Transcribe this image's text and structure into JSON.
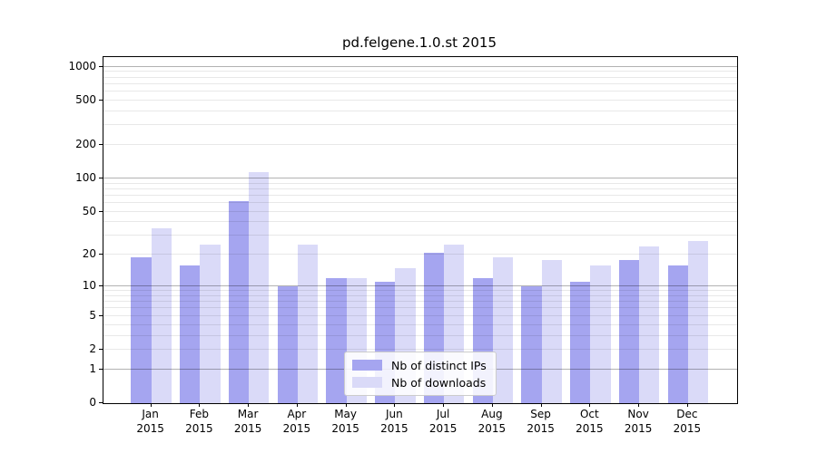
{
  "title": "pd.felgene.1.0.st 2015",
  "chart_data": {
    "type": "bar",
    "title": "pd.felgene.1.0.st 2015",
    "scale": "log10(1+value)",
    "grid": "horizontal, minor + major (majors at powers of 10), drawn over bars",
    "legend_position": "inside bottom-center",
    "categories": [
      "Jan",
      "Feb",
      "Mar",
      "Apr",
      "May",
      "Jun",
      "Jul",
      "Aug",
      "Sep",
      "Oct",
      "Nov",
      "Dec"
    ],
    "category_year": "2015",
    "series": [
      {
        "name": "Nb of distinct IPs",
        "color": "#a5a5f0",
        "values": [
          19,
          16,
          62,
          10,
          12,
          11,
          21,
          12,
          10,
          11,
          18,
          16
        ]
      },
      {
        "name": "Nb of downloads",
        "color": "#dadaf8",
        "values": [
          35,
          25,
          114,
          25,
          12,
          15,
          25,
          19,
          18,
          16,
          24,
          27
        ]
      }
    ],
    "xlabel": "",
    "ylabel": "",
    "y_ticks": [
      0,
      1,
      2,
      5,
      10,
      20,
      50,
      100,
      200,
      500,
      1000
    ],
    "y_minor_gridlines": [
      2,
      3,
      4,
      5,
      6,
      7,
      8,
      9,
      20,
      30,
      40,
      50,
      60,
      70,
      80,
      90,
      200,
      300,
      400,
      500,
      600,
      700,
      800,
      900
    ],
    "y_major_gridlines": [
      1,
      10,
      100,
      1000
    ],
    "ylim": [
      0,
      1220
    ]
  }
}
